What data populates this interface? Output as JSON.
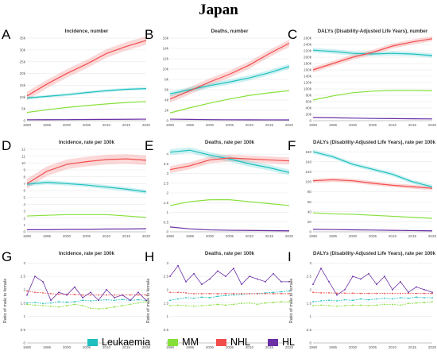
{
  "title": "Japan",
  "series_names": [
    "Leukaemia",
    "MM",
    "NHL",
    "HL"
  ],
  "colors": {
    "Leukaemia": "#1fbfbf",
    "MM": "#86e03a",
    "NHL": "#f24d4d",
    "HL": "#6b2fa6"
  },
  "chart_data": [
    {
      "letter": "A",
      "title": "Incidence, number",
      "type": "line",
      "ylim": [
        0,
        35000
      ],
      "yticks": [
        "0",
        "5k",
        "10k",
        "15k",
        "20k",
        "25k",
        "30k",
        "35k"
      ],
      "ytick_values": [
        0,
        5000,
        10000,
        15000,
        20000,
        25000,
        30000,
        35000
      ],
      "x": [
        1990,
        1995,
        2000,
        2005,
        2010,
        2015,
        2020
      ],
      "xticks": [
        "1990",
        "1995",
        "2000",
        "2005",
        "2010",
        "2015",
        "2020"
      ],
      "series": [
        {
          "name": "Leukaemia",
          "values": [
            9600,
            10300,
            11000,
            11900,
            12700,
            13300,
            13600
          ]
        },
        {
          "name": "MM",
          "values": [
            3500,
            4600,
            5600,
            6400,
            7100,
            7700,
            8100
          ]
        },
        {
          "name": "NHL",
          "values": [
            10500,
            15500,
            20000,
            24000,
            28500,
            31500,
            34000
          ]
        },
        {
          "name": "HL",
          "values": [
            400,
            420,
            450,
            500,
            550,
            600,
            650
          ]
        }
      ],
      "bands": {
        "NHL": 1800,
        "Leukaemia": 600
      }
    },
    {
      "letter": "B",
      "title": "Deaths, number",
      "type": "line",
      "ylim": [
        0,
        16000
      ],
      "yticks": [
        "0",
        "2k",
        "4k",
        "6k",
        "8k",
        "10k",
        "12k",
        "14k",
        "16k"
      ],
      "ytick_values": [
        0,
        2000,
        4000,
        6000,
        8000,
        10000,
        12000,
        14000,
        16000
      ],
      "x": [
        1990,
        1995,
        2000,
        2005,
        2010,
        2015,
        2020
      ],
      "xticks": [
        "1990",
        "1995",
        "2000",
        "2005",
        "2010",
        "2015",
        "2020"
      ],
      "series": [
        {
          "name": "Leukaemia",
          "values": [
            5200,
            6000,
            6800,
            7500,
            8300,
            9300,
            10500
          ]
        },
        {
          "name": "MM",
          "values": [
            1500,
            2500,
            3400,
            4200,
            4900,
            5400,
            5800
          ]
        },
        {
          "name": "NHL",
          "values": [
            4200,
            5800,
            7500,
            9000,
            10800,
            13000,
            15000
          ]
        },
        {
          "name": "HL",
          "values": [
            300,
            250,
            200,
            180,
            170,
            160,
            150
          ]
        }
      ],
      "bands": {
        "NHL": 700,
        "Leukaemia": 500
      }
    },
    {
      "letter": "C",
      "title": "DALYs (Disability-Adjusted Life Years), number",
      "type": "line",
      "ylim": [
        0,
        260000
      ],
      "yticks": [
        "0",
        "20k",
        "40k",
        "60k",
        "80k",
        "100k",
        "120k",
        "140k",
        "160k",
        "180k",
        "200k",
        "220k",
        "240k",
        "260k"
      ],
      "ytick_values": [
        0,
        20000,
        40000,
        60000,
        80000,
        100000,
        120000,
        140000,
        160000,
        180000,
        200000,
        220000,
        240000,
        260000
      ],
      "x": [
        1990,
        1995,
        2000,
        2005,
        2010,
        2015,
        2020
      ],
      "xticks": [
        "1990",
        "1995",
        "2000",
        "2005",
        "2010",
        "2015",
        "2020"
      ],
      "series": [
        {
          "name": "Leukaemia",
          "values": [
            222000,
            218000,
            212000,
            210000,
            212000,
            210000,
            205000
          ]
        },
        {
          "name": "MM",
          "values": [
            65000,
            78000,
            88000,
            93000,
            95000,
            95000,
            94000
          ]
        },
        {
          "name": "NHL",
          "values": [
            160000,
            180000,
            200000,
            215000,
            235000,
            248000,
            258000
          ]
        },
        {
          "name": "HL",
          "values": [
            10000,
            9000,
            8000,
            7000,
            6500,
            6000,
            5500
          ]
        }
      ],
      "bands": {
        "NHL": 8000,
        "Leukaemia": 7000
      }
    },
    {
      "letter": "D",
      "title": "Incidence, rate per 100k",
      "type": "line",
      "ylim": [
        0,
        12
      ],
      "yticks": [
        "0",
        "1",
        "2",
        "3",
        "4",
        "5",
        "6",
        "7",
        "8",
        "9",
        "10",
        "11",
        "12"
      ],
      "ytick_values": [
        0,
        1,
        2,
        3,
        4,
        5,
        6,
        7,
        8,
        9,
        10,
        11,
        12
      ],
      "x": [
        1990,
        1995,
        2000,
        2005,
        2010,
        2015,
        2020
      ],
      "xticks": [
        "1990",
        "1995",
        "2000",
        "2005",
        "2010",
        "2015",
        "2020"
      ],
      "series": [
        {
          "name": "Leukaemia",
          "values": [
            6.9,
            7.2,
            7.0,
            6.8,
            6.5,
            6.2,
            5.8
          ]
        },
        {
          "name": "MM",
          "values": [
            2.3,
            2.4,
            2.5,
            2.5,
            2.5,
            2.3,
            2.1
          ]
        },
        {
          "name": "NHL",
          "values": [
            7.0,
            8.8,
            9.8,
            10.2,
            10.5,
            10.6,
            10.4
          ]
        },
        {
          "name": "HL",
          "values": [
            0.3,
            0.3,
            0.35,
            0.35,
            0.4,
            0.4,
            0.45
          ]
        }
      ],
      "bands": {
        "NHL": 0.7,
        "Leukaemia": 0.3
      }
    },
    {
      "letter": "E",
      "title": "Deaths, rate per 100k",
      "type": "line",
      "ylim": [
        0,
        4.25
      ],
      "yticks": [
        "0",
        "0.5",
        "1",
        "1.5",
        "2",
        "2.5",
        "3",
        "3.5",
        "4"
      ],
      "ytick_values": [
        0,
        0.5,
        1,
        1.5,
        2,
        2.5,
        3,
        3.5,
        4
      ],
      "x": [
        1990,
        1995,
        2000,
        2005,
        2010,
        2015,
        2020
      ],
      "xticks": [
        "1990",
        "1995",
        "2000",
        "2005",
        "2010",
        "2015",
        "2020"
      ],
      "series": [
        {
          "name": "Leukaemia",
          "values": [
            4.1,
            4.2,
            3.95,
            3.75,
            3.5,
            3.3,
            3.05
          ]
        },
        {
          "name": "MM",
          "values": [
            1.35,
            1.55,
            1.65,
            1.65,
            1.55,
            1.45,
            1.35
          ]
        },
        {
          "name": "NHL",
          "values": [
            3.2,
            3.4,
            3.7,
            3.8,
            3.75,
            3.7,
            3.65
          ]
        },
        {
          "name": "HL",
          "values": [
            0.25,
            0.15,
            0.1,
            0.08,
            0.07,
            0.06,
            0.05
          ]
        }
      ],
      "bands": {
        "NHL": 0.18,
        "Leukaemia": 0.15
      }
    },
    {
      "letter": "F",
      "title": "DALYs (Disability-Adjusted Life Years), rate per 100k",
      "type": "line",
      "ylim": [
        0,
        165
      ],
      "yticks": [
        "0",
        "20",
        "40",
        "60",
        "80",
        "100",
        "120",
        "140",
        "160"
      ],
      "ytick_values": [
        0,
        20,
        40,
        60,
        80,
        100,
        120,
        140,
        160
      ],
      "x": [
        1990,
        1995,
        2000,
        2005,
        2010,
        2015,
        2020
      ],
      "xticks": [
        "1990",
        "1995",
        "2000",
        "2005",
        "2010",
        "2015",
        "2020"
      ],
      "series": [
        {
          "name": "Leukaemia",
          "values": [
            160,
            150,
            135,
            125,
            115,
            100,
            90
          ]
        },
        {
          "name": "MM",
          "values": [
            38,
            36,
            35,
            33,
            31,
            29,
            27
          ]
        },
        {
          "name": "NHL",
          "values": [
            102,
            104,
            102,
            97,
            93,
            90,
            87
          ]
        },
        {
          "name": "HL",
          "values": [
            5,
            4.5,
            4,
            3.5,
            3,
            2.5,
            2
          ]
        }
      ],
      "bands": {
        "NHL": 4,
        "Leukaemia": 4
      }
    },
    {
      "letter": "G",
      "title": "Incidence, rate per 100k",
      "type": "line",
      "ylabel": "Ratio of male to female",
      "ylim": [
        0,
        3.1
      ],
      "yticks": [
        "0",
        "0.5",
        "1",
        "1.5",
        "2",
        "2.5",
        "3"
      ],
      "ytick_values": [
        0,
        0.5,
        1,
        1.5,
        2,
        2.5,
        3
      ],
      "x": [
        1990,
        1992,
        1994,
        1996,
        1998,
        2000,
        2002,
        2004,
        2006,
        2008,
        2010,
        2012,
        2014,
        2016,
        2018,
        2020
      ],
      "xticks": [
        "1990",
        "1995",
        "2000",
        "2005",
        "2010",
        "2015",
        "2020"
      ],
      "xtick_values": [
        1990,
        1995,
        2000,
        2005,
        2010,
        2015,
        2020
      ],
      "series": [
        {
          "name": "Leukaemia",
          "values": [
            1.5,
            1.52,
            1.48,
            1.5,
            1.55,
            1.53,
            1.55,
            1.6,
            1.58,
            1.6,
            1.62,
            1.6,
            1.63,
            1.6,
            1.62,
            1.6
          ]
        },
        {
          "name": "MM",
          "values": [
            1.45,
            1.42,
            1.4,
            1.38,
            1.35,
            1.4,
            1.45,
            1.4,
            1.3,
            1.28,
            1.3,
            1.35,
            1.4,
            1.45,
            1.5,
            1.55
          ]
        },
        {
          "name": "NHL",
          "values": [
            1.95,
            1.9,
            1.88,
            1.85,
            1.83,
            1.82,
            1.82,
            1.8,
            1.8,
            1.8,
            1.8,
            1.8,
            1.8,
            1.8,
            1.8,
            1.8
          ]
        },
        {
          "name": "HL",
          "values": [
            1.8,
            2.5,
            2.3,
            1.6,
            1.9,
            1.8,
            2.1,
            1.7,
            1.9,
            1.6,
            2.0,
            1.7,
            1.8,
            1.6,
            1.9,
            1.6
          ]
        }
      ],
      "dashed": [
        "Leukaemia",
        "MM",
        "NHL"
      ],
      "markers": true
    },
    {
      "letter": "H",
      "title": "Deaths, rate per 100k",
      "type": "line",
      "ylabel": "Ratio of male to female",
      "ylim": [
        0,
        3.1
      ],
      "yticks": [
        "0",
        "0.5",
        "1",
        "1.5",
        "2",
        "2.5",
        "3"
      ],
      "ytick_values": [
        0,
        0.5,
        1,
        1.5,
        2,
        2.5,
        3
      ],
      "x": [
        1990,
        1992,
        1994,
        1996,
        1998,
        2000,
        2002,
        2004,
        2006,
        2008,
        2010,
        2012,
        2014,
        2016,
        2018,
        2020
      ],
      "xticks": [
        "1990",
        "1995",
        "2000",
        "2005",
        "2010",
        "2015",
        "2020"
      ],
      "xtick_values": [
        1990,
        1995,
        2000,
        2005,
        2010,
        2015,
        2020
      ],
      "series": [
        {
          "name": "Leukaemia",
          "values": [
            1.6,
            1.65,
            1.7,
            1.68,
            1.72,
            1.7,
            1.75,
            1.78,
            1.8,
            1.82,
            1.85,
            1.85,
            1.88,
            1.9,
            1.92,
            1.95
          ]
        },
        {
          "name": "MM",
          "values": [
            1.4,
            1.42,
            1.4,
            1.38,
            1.4,
            1.42,
            1.45,
            1.42,
            1.45,
            1.48,
            1.5,
            1.45,
            1.5,
            1.52,
            1.55,
            1.55
          ]
        },
        {
          "name": "NHL",
          "values": [
            1.9,
            1.9,
            1.88,
            1.85,
            1.85,
            1.85,
            1.85,
            1.85,
            1.85,
            1.85,
            1.85,
            1.85,
            1.85,
            1.85,
            1.85,
            1.85
          ]
        },
        {
          "name": "HL",
          "values": [
            2.5,
            2.9,
            2.3,
            2.6,
            2.2,
            2.4,
            2.7,
            2.5,
            2.8,
            2.2,
            2.5,
            2.4,
            2.3,
            2.6,
            2.3,
            2.3
          ]
        }
      ],
      "dashed": [
        "Leukaemia",
        "MM",
        "NHL"
      ],
      "markers": true
    },
    {
      "letter": "I",
      "title": "DALYs (Disability-Adjusted Life Years), rate per 100k",
      "type": "line",
      "ylabel": "Ratio of male to female",
      "ylim": [
        0,
        3.1
      ],
      "yticks": [
        "0",
        "0.5",
        "1",
        "1.5",
        "2",
        "2.5",
        "3"
      ],
      "ytick_values": [
        0,
        0.5,
        1,
        1.5,
        2,
        2.5,
        3
      ],
      "x": [
        1990,
        1992,
        1994,
        1996,
        1998,
        2000,
        2002,
        2004,
        2006,
        2008,
        2010,
        2012,
        2014,
        2016,
        2018,
        2020
      ],
      "xticks": [
        "1990",
        "1995",
        "2000",
        "2005",
        "2010",
        "2015",
        "2020"
      ],
      "xtick_values": [
        1990,
        1995,
        2000,
        2005,
        2010,
        2015,
        2020
      ],
      "series": [
        {
          "name": "Leukaemia",
          "values": [
            1.55,
            1.58,
            1.6,
            1.58,
            1.62,
            1.6,
            1.65,
            1.62,
            1.65,
            1.68,
            1.65,
            1.7,
            1.68,
            1.72,
            1.7,
            1.7
          ]
        },
        {
          "name": "MM",
          "values": [
            1.4,
            1.42,
            1.4,
            1.38,
            1.4,
            1.42,
            1.42,
            1.4,
            1.42,
            1.45,
            1.45,
            1.42,
            1.48,
            1.5,
            1.52,
            1.55
          ]
        },
        {
          "name": "NHL",
          "values": [
            1.9,
            1.88,
            1.88,
            1.87,
            1.87,
            1.87,
            1.86,
            1.86,
            1.86,
            1.86,
            1.86,
            1.86,
            1.86,
            1.86,
            1.86,
            1.86
          ]
        },
        {
          "name": "HL",
          "values": [
            2.2,
            2.8,
            2.3,
            1.8,
            2.0,
            2.5,
            2.4,
            2.6,
            2.2,
            2.5,
            2.0,
            2.3,
            1.9,
            2.1,
            2.0,
            1.9
          ]
        }
      ],
      "dashed": [
        "Leukaemia",
        "MM",
        "NHL"
      ],
      "markers": true
    }
  ]
}
